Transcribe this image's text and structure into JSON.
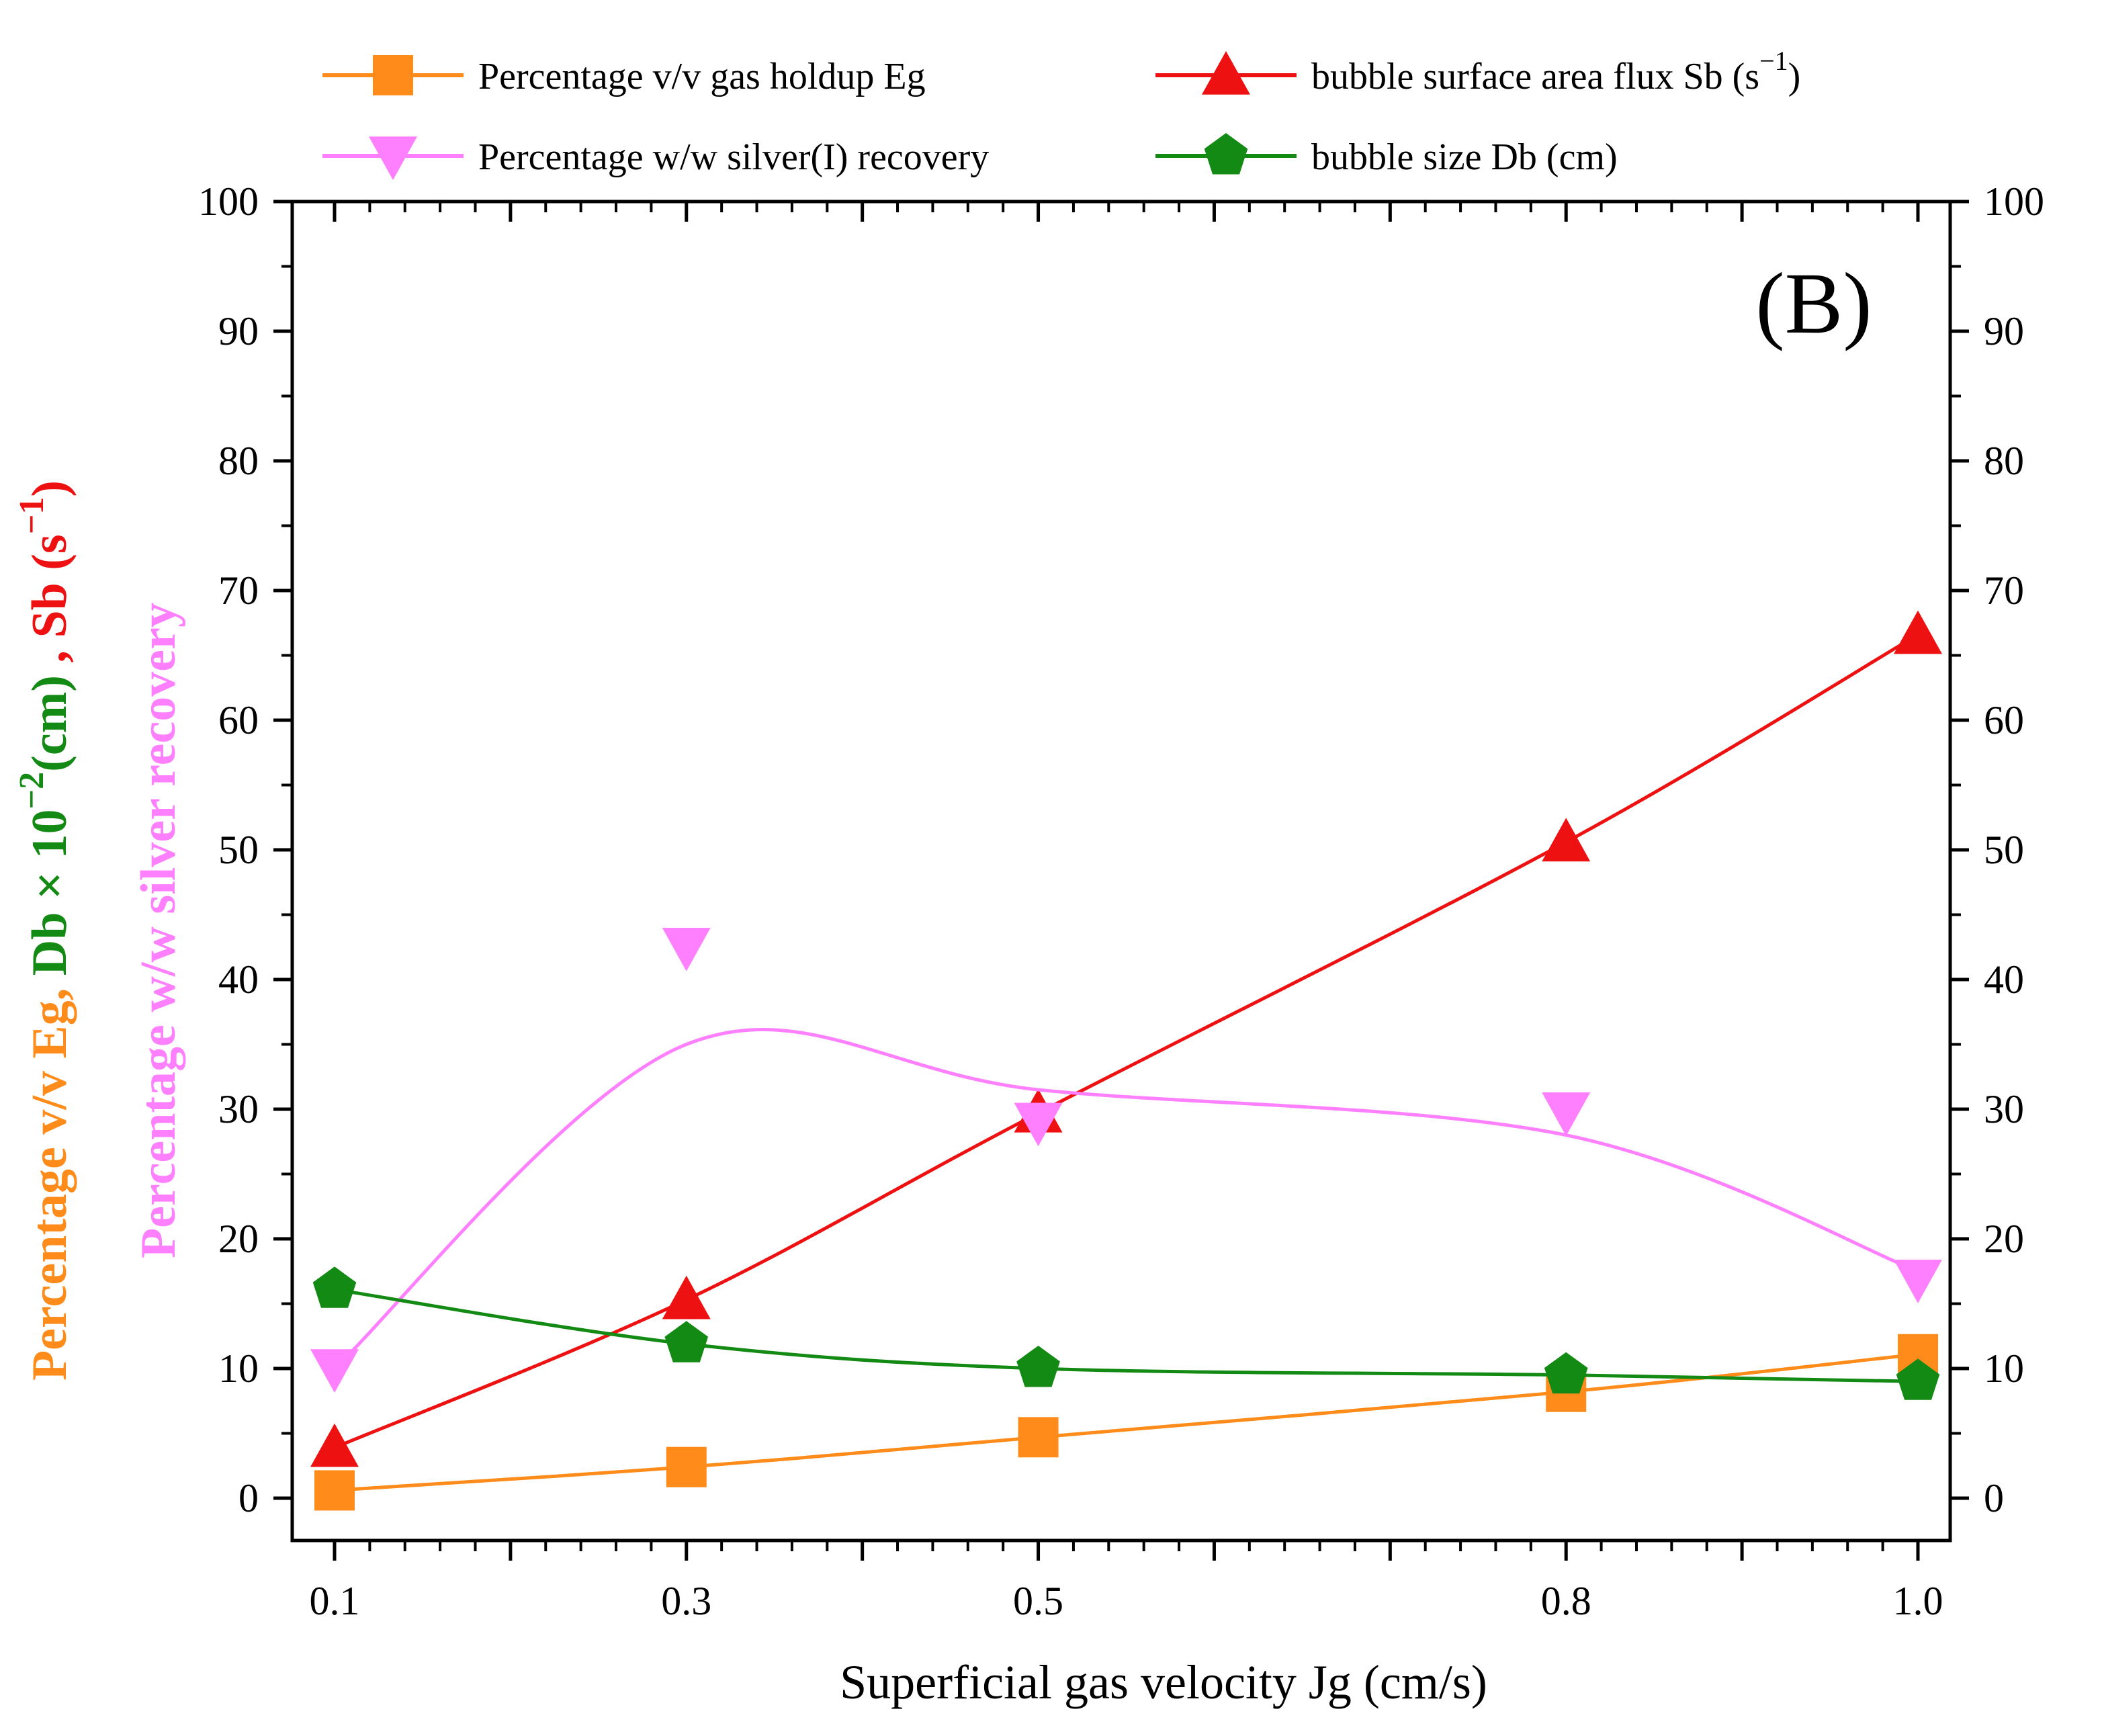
{
  "chart_data": {
    "type": "line",
    "panel_label": "(B)",
    "x": [
      0.1,
      0.3,
      0.5,
      0.8,
      1.0
    ],
    "x_tick_labels": [
      "0.1",
      "0.3",
      "0.5",
      "0.8",
      "1.0"
    ],
    "xlabel": "Superficial gas velocity Jg (cm/s)",
    "ylim": [
      0,
      100
    ],
    "y_ticks": [
      0,
      10,
      20,
      30,
      40,
      50,
      60,
      70,
      80,
      90,
      100
    ],
    "ylabel_parts": [
      {
        "text": "Percentage v/v Eg, ",
        "color": "#ff8c1a"
      },
      {
        "text": "Db × 10",
        "color": "#138a13"
      },
      {
        "text": "−2",
        "color": "#138a13",
        "sup": true
      },
      {
        "text": "(cm)",
        "color": "#138a13"
      },
      {
        "text": " , Sb (s",
        "color": "#ee1111"
      },
      {
        "text": "−1",
        "color": "#ee1111",
        "sup": true
      },
      {
        "text": ")",
        "color": "#ee1111"
      }
    ],
    "ylabel2": "Percentage w/w silver recovery",
    "ylabel2_color": "#ff80ff",
    "series": [
      {
        "name": "Percentage v/v gas holdup Eg",
        "color": "#ff8c1a",
        "marker": "square",
        "values": [
          0.6,
          2.4,
          4.7,
          8.2,
          11.1
        ]
      },
      {
        "name": "bubble surface area flux Sb (s",
        "name_sup": "−1",
        "name_close": ")",
        "color": "#ee1111",
        "marker": "triangle-up",
        "values": [
          3.9,
          15.3,
          29.7,
          50.6,
          66.6
        ]
      },
      {
        "name": "Percentage w/w silver(I) recovery",
        "color": "#ff80ff",
        "marker": "triangle-down",
        "values": [
          10.0,
          42.5,
          29.0,
          29.8,
          16.9
        ],
        "curve_values": [
          10.0,
          35.0,
          31.5,
          28.0,
          17.5
        ]
      },
      {
        "name": "bubble size Db (cm)",
        "color": "#138a13",
        "marker": "pentagon",
        "values": [
          16.1,
          11.9,
          10.0,
          9.5,
          9.0
        ]
      }
    ],
    "legend_placement": "top"
  }
}
